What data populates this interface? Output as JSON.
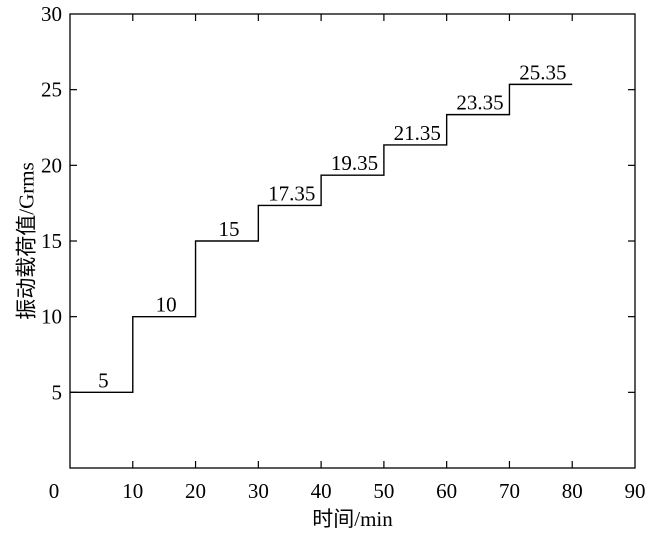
{
  "chart_data": {
    "type": "line",
    "step": true,
    "title": "",
    "xlabel": "时间/min",
    "ylabel": "振动载荷值/Grms",
    "xlim": [
      0,
      90
    ],
    "ylim": [
      0,
      30
    ],
    "xticks": [
      "0",
      "10",
      "20",
      "30",
      "40",
      "50",
      "60",
      "70",
      "80",
      "90"
    ],
    "yticks": [
      "5",
      "10",
      "15",
      "20",
      "25",
      "30"
    ],
    "grid": false,
    "series": [
      {
        "steps": [
          {
            "x0": 0,
            "x1": 10,
            "y": 5,
            "label": "5"
          },
          {
            "x0": 10,
            "x1": 20,
            "y": 10,
            "label": "10"
          },
          {
            "x0": 20,
            "x1": 30,
            "y": 15,
            "label": "15"
          },
          {
            "x0": 30,
            "x1": 40,
            "y": 17.35,
            "label": "17.35"
          },
          {
            "x0": 40,
            "x1": 50,
            "y": 19.35,
            "label": "19.35"
          },
          {
            "x0": 50,
            "x1": 60,
            "y": 21.35,
            "label": "21.35"
          },
          {
            "x0": 60,
            "x1": 70,
            "y": 23.35,
            "label": "23.35"
          },
          {
            "x0": 70,
            "x1": 80,
            "y": 25.35,
            "label": "25.35"
          }
        ]
      }
    ]
  }
}
